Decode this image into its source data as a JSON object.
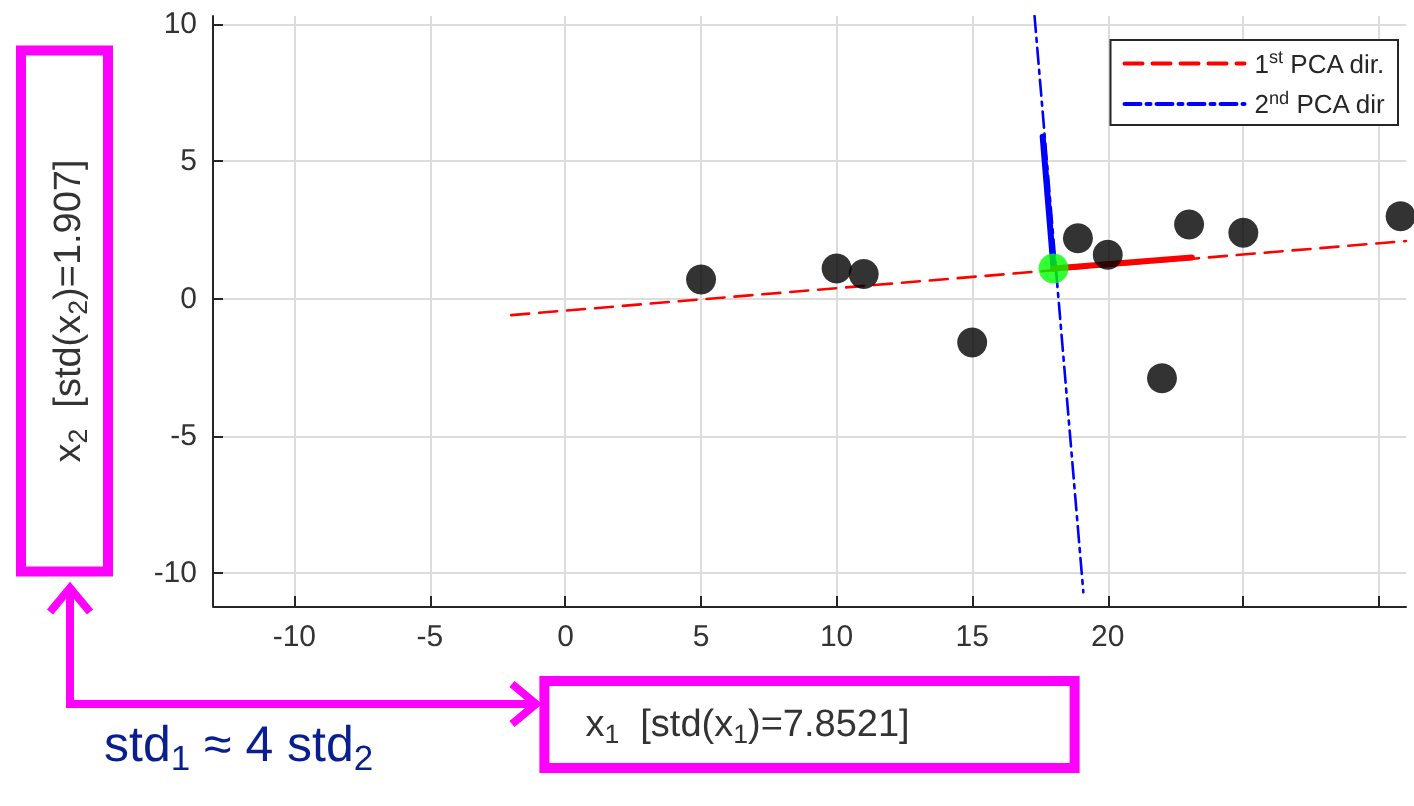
{
  "chart_data": {
    "type": "scatter",
    "xlabel": "x$_{1}$  [std(x$_{1}$)=7.8521]",
    "ylabel": "x$_{2}$  [std(x$_{2}$)=1.907]",
    "annotations": [
      "std$_{1}$ ≈ 4 std$_{2}$"
    ],
    "xlim": [
      -13,
      31
    ],
    "xticks": [
      -10,
      -5,
      0,
      5,
      10,
      15,
      20,
      {
        "value": 25,
        "label": null
      },
      {
        "value": 30,
        "label": null
      }
    ],
    "ylim": [
      -11.2,
      10.3
    ],
    "yticks": [
      -10,
      -5,
      0,
      5,
      10
    ],
    "grid": true,
    "legend": "top right",
    "marker": "circle",
    "series": [
      {
        "type": "line",
        "name": "1$^{st}$ PCA dir.",
        "color": "#ff0000",
        "x": [
          -2,
          31
        ],
        "values": [
          -0.6,
          2.1
        ],
        "line_style": "dashed",
        "marker": "none"
      },
      {
        "type": "line",
        "name": "2$^{nd}$ PCA dir",
        "color": "#0000ff",
        "x": [
          17.3,
          19.1
        ],
        "values": [
          10.3,
          -10.7
        ],
        "line_style": "dashdot",
        "marker": "none"
      },
      {
        "type": "line",
        "color": "#0000ff",
        "x": [
          18,
          17.6
        ],
        "values": [
          1.1,
          5.9
        ],
        "line_style": "solid",
        "marker": "none"
      },
      {
        "type": "line",
        "color": "#ff0000",
        "x": [
          18,
          23.1
        ],
        "values": [
          1.1,
          1.5
        ],
        "line_style": "solid",
        "marker": "none"
      },
      {
        "color": "#000000",
        "x": [
          5,
          10,
          11,
          15,
          18.9,
          20,
          22,
          23,
          25,
          30.8
        ],
        "values": [
          0.7,
          1.1,
          0.9,
          -1.6,
          2.2,
          1.6,
          -2.9,
          2.7,
          2.4,
          3.0
        ]
      },
      {
        "color": "#00ff00",
        "x": [
          18
        ],
        "values": [
          1.1
        ]
      }
    ]
  }
}
